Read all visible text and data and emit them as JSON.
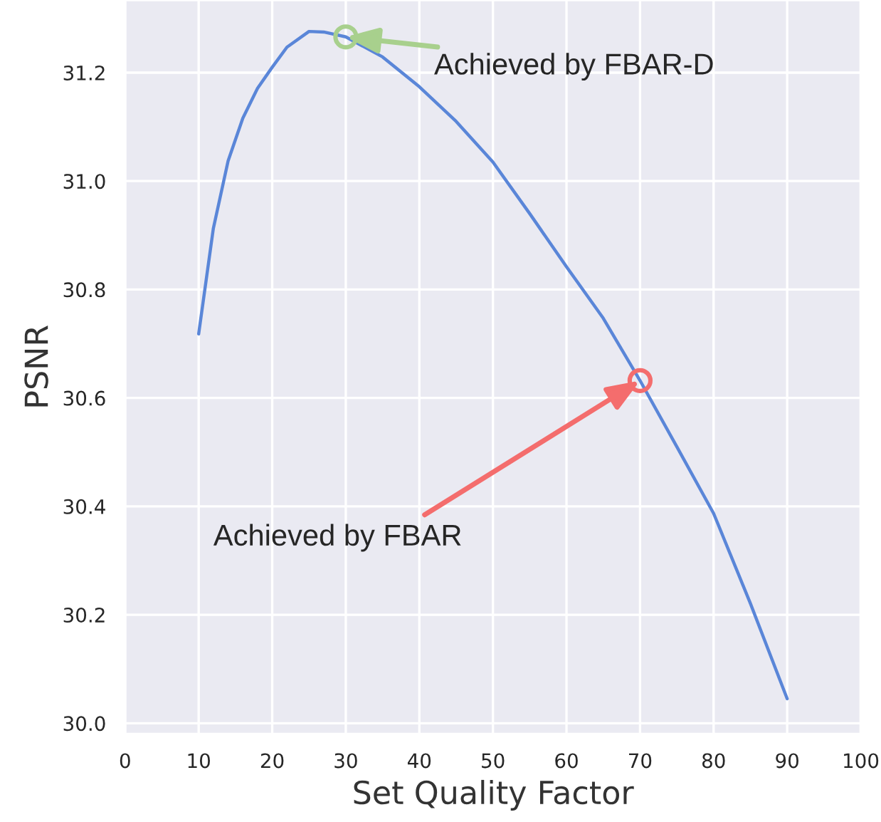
{
  "chart_data": {
    "type": "line",
    "xlabel": "Set Quality Factor",
    "ylabel": "PSNR",
    "series": [
      {
        "color": "#5a86d8",
        "marker": "none",
        "x": [
          10,
          12,
          14,
          16,
          18,
          20,
          22,
          25,
          27,
          30,
          35,
          40,
          45,
          50,
          55,
          60,
          65,
          70,
          75,
          80,
          85,
          90
        ],
        "values": [
          30.718,
          30.913,
          31.037,
          31.116,
          31.171,
          31.21,
          31.247,
          31.276,
          31.275,
          31.266,
          31.229,
          31.174,
          31.11,
          31.035,
          30.94,
          30.842,
          30.747,
          30.632,
          30.51,
          30.387,
          30.221,
          30.045
        ]
      },
      {
        "type": "scatter",
        "color": "#a8d08d",
        "marker": "circle",
        "x": [
          30
        ],
        "values": [
          31.266
        ]
      },
      {
        "type": "scatter",
        "color": "#f46d6d",
        "marker": "circle",
        "x": [
          70
        ],
        "values": [
          30.632
        ]
      }
    ],
    "annotations": [
      {
        "text": "Achieved by FBAR-D",
        "x": 30,
        "y": 31.266
      },
      {
        "text": "Achieved by FBAR",
        "x": 70,
        "y": 30.632
      }
    ],
    "xlim": [
      0,
      100
    ],
    "xticks": [
      0,
      10,
      20,
      30,
      40,
      50,
      60,
      70,
      80,
      90,
      100
    ],
    "ylim": [
      29.98,
      31.334
    ],
    "yticks": [
      {
        "value": 30.0,
        "label": "30.0"
      },
      {
        "value": 30.2,
        "label": "30.2"
      },
      {
        "value": 30.4,
        "label": "30.4"
      },
      {
        "value": 30.6,
        "label": "30.6"
      },
      {
        "value": 30.8,
        "label": "30.8"
      },
      {
        "value": 31.0,
        "label": "31.0"
      },
      {
        "value": 31.2,
        "label": "31.2"
      }
    ],
    "grid": true
  }
}
